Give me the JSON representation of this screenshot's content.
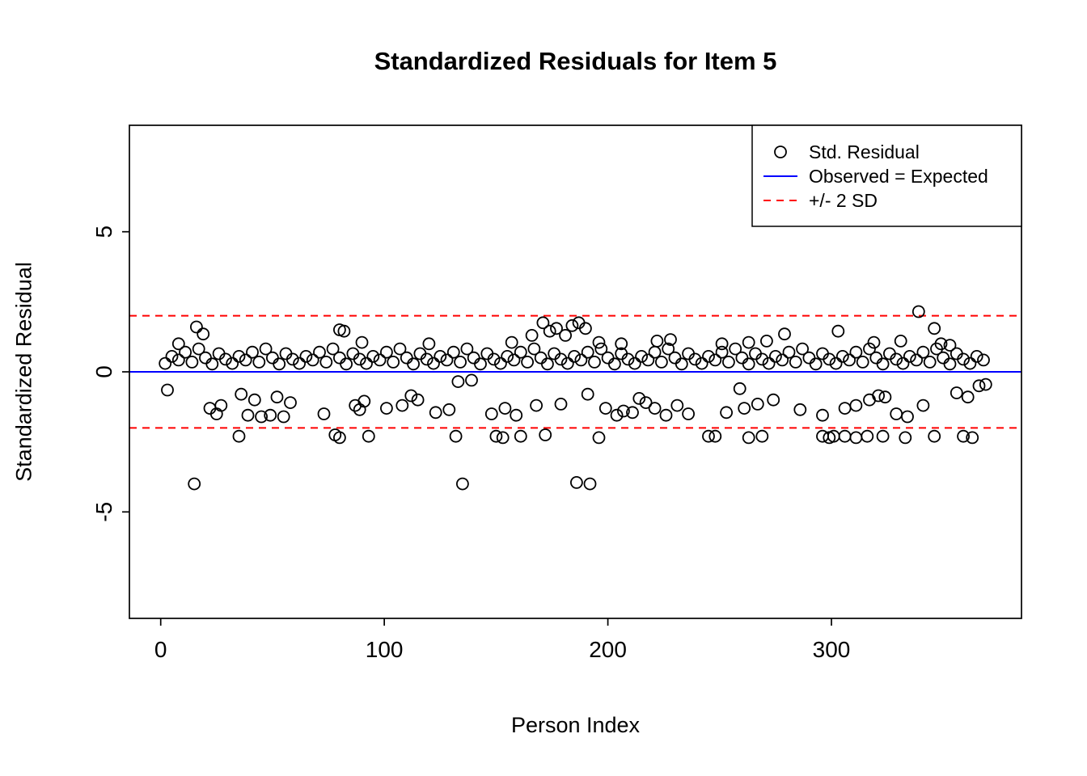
{
  "page": {
    "background": "#ffffff"
  },
  "chart_data": {
    "type": "scatter",
    "title": "Standardized Residuals for Item 5",
    "xlabel": "Person Index",
    "ylabel": "Standardized Residual",
    "x_ticks": [
      0,
      100,
      200,
      300
    ],
    "y_ticks": [
      -5,
      0,
      5
    ],
    "x_range": [
      -14,
      385
    ],
    "y_range": [
      -8.8,
      8.8
    ],
    "point_color": "#000000",
    "reference_lines": [
      {
        "label": "Observed = Expected",
        "y": 0,
        "color": "#0000ff",
        "style": "solid"
      },
      {
        "label": "+2 SD",
        "y": 2,
        "color": "#ff0000",
        "style": "dashed"
      },
      {
        "label": "-2 SD",
        "y": -2,
        "color": "#ff0000",
        "style": "dashed"
      }
    ],
    "legend": {
      "entries": [
        {
          "label": "Std. Residual",
          "type": "point",
          "color": "#000000"
        },
        {
          "label": "Observed = Expected",
          "type": "line",
          "color": "#0000ff"
        },
        {
          "label": "+/- 2 SD",
          "type": "dashed",
          "color": "#ff0000"
        }
      ]
    },
    "points": [
      [
        2,
        0.3
      ],
      [
        5,
        0.55
      ],
      [
        8,
        0.42
      ],
      [
        11,
        0.7
      ],
      [
        14,
        0.35
      ],
      [
        17,
        0.82
      ],
      [
        20,
        0.5
      ],
      [
        23,
        0.28
      ],
      [
        26,
        0.65
      ],
      [
        29,
        0.45
      ],
      [
        32,
        0.3
      ],
      [
        35,
        0.55
      ],
      [
        38,
        0.42
      ],
      [
        41,
        0.7
      ],
      [
        44,
        0.35
      ],
      [
        47,
        0.82
      ],
      [
        50,
        0.5
      ],
      [
        53,
        0.28
      ],
      [
        56,
        0.65
      ],
      [
        59,
        0.45
      ],
      [
        62,
        0.3
      ],
      [
        65,
        0.55
      ],
      [
        68,
        0.42
      ],
      [
        71,
        0.7
      ],
      [
        74,
        0.35
      ],
      [
        77,
        0.82
      ],
      [
        80,
        0.5
      ],
      [
        83,
        0.28
      ],
      [
        86,
        0.65
      ],
      [
        89,
        0.45
      ],
      [
        92,
        0.3
      ],
      [
        95,
        0.55
      ],
      [
        98,
        0.42
      ],
      [
        101,
        0.7
      ],
      [
        104,
        0.35
      ],
      [
        107,
        0.82
      ],
      [
        110,
        0.5
      ],
      [
        113,
        0.28
      ],
      [
        116,
        0.65
      ],
      [
        119,
        0.45
      ],
      [
        122,
        0.3
      ],
      [
        125,
        0.55
      ],
      [
        128,
        0.42
      ],
      [
        131,
        0.7
      ],
      [
        134,
        0.35
      ],
      [
        137,
        0.82
      ],
      [
        140,
        0.5
      ],
      [
        143,
        0.28
      ],
      [
        146,
        0.65
      ],
      [
        149,
        0.45
      ],
      [
        152,
        0.3
      ],
      [
        155,
        0.55
      ],
      [
        158,
        0.42
      ],
      [
        161,
        0.7
      ],
      [
        164,
        0.35
      ],
      [
        167,
        0.82
      ],
      [
        170,
        0.5
      ],
      [
        173,
        0.28
      ],
      [
        176,
        0.65
      ],
      [
        179,
        0.45
      ],
      [
        182,
        0.3
      ],
      [
        185,
        0.55
      ],
      [
        188,
        0.42
      ],
      [
        191,
        0.7
      ],
      [
        194,
        0.35
      ],
      [
        197,
        0.82
      ],
      [
        200,
        0.5
      ],
      [
        203,
        0.28
      ],
      [
        206,
        0.65
      ],
      [
        209,
        0.45
      ],
      [
        212,
        0.3
      ],
      [
        215,
        0.55
      ],
      [
        218,
        0.42
      ],
      [
        221,
        0.7
      ],
      [
        224,
        0.35
      ],
      [
        227,
        0.82
      ],
      [
        230,
        0.5
      ],
      [
        233,
        0.28
      ],
      [
        236,
        0.65
      ],
      [
        239,
        0.45
      ],
      [
        242,
        0.3
      ],
      [
        245,
        0.55
      ],
      [
        248,
        0.42
      ],
      [
        251,
        0.7
      ],
      [
        254,
        0.35
      ],
      [
        257,
        0.82
      ],
      [
        260,
        0.5
      ],
      [
        263,
        0.28
      ],
      [
        266,
        0.65
      ],
      [
        269,
        0.45
      ],
      [
        272,
        0.3
      ],
      [
        275,
        0.55
      ],
      [
        278,
        0.42
      ],
      [
        281,
        0.7
      ],
      [
        284,
        0.35
      ],
      [
        287,
        0.82
      ],
      [
        290,
        0.5
      ],
      [
        293,
        0.28
      ],
      [
        296,
        0.65
      ],
      [
        299,
        0.45
      ],
      [
        302,
        0.3
      ],
      [
        305,
        0.55
      ],
      [
        308,
        0.42
      ],
      [
        311,
        0.7
      ],
      [
        314,
        0.35
      ],
      [
        317,
        0.82
      ],
      [
        320,
        0.5
      ],
      [
        323,
        0.28
      ],
      [
        326,
        0.65
      ],
      [
        329,
        0.45
      ],
      [
        332,
        0.3
      ],
      [
        335,
        0.55
      ],
      [
        338,
        0.42
      ],
      [
        341,
        0.7
      ],
      [
        344,
        0.35
      ],
      [
        347,
        0.82
      ],
      [
        350,
        0.5
      ],
      [
        353,
        0.28
      ],
      [
        356,
        0.65
      ],
      [
        359,
        0.45
      ],
      [
        362,
        0.3
      ],
      [
        365,
        0.55
      ],
      [
        368,
        0.42
      ],
      [
        8,
        1.0
      ],
      [
        16,
        1.6
      ],
      [
        19,
        1.35
      ],
      [
        80,
        1.5
      ],
      [
        82,
        1.45
      ],
      [
        90,
        1.05
      ],
      [
        120,
        1.0
      ],
      [
        157,
        1.05
      ],
      [
        166,
        1.3
      ],
      [
        171,
        1.75
      ],
      [
        174,
        1.45
      ],
      [
        177,
        1.55
      ],
      [
        181,
        1.3
      ],
      [
        184,
        1.65
      ],
      [
        187,
        1.75
      ],
      [
        190,
        1.55
      ],
      [
        196,
        1.05
      ],
      [
        206,
        1.0
      ],
      [
        222,
        1.1
      ],
      [
        228,
        1.15
      ],
      [
        251,
        1.0
      ],
      [
        263,
        1.05
      ],
      [
        271,
        1.1
      ],
      [
        279,
        1.35
      ],
      [
        303,
        1.45
      ],
      [
        319,
        1.05
      ],
      [
        331,
        1.1
      ],
      [
        339,
        2.15
      ],
      [
        346,
        1.55
      ],
      [
        349,
        1.0
      ],
      [
        353,
        0.95
      ],
      [
        3,
        -0.65
      ],
      [
        22,
        -1.3
      ],
      [
        25,
        -1.5
      ],
      [
        27,
        -1.2
      ],
      [
        36,
        -0.8
      ],
      [
        39,
        -1.55
      ],
      [
        42,
        -1.0
      ],
      [
        45,
        -1.6
      ],
      [
        49,
        -1.55
      ],
      [
        52,
        -0.9
      ],
      [
        55,
        -1.6
      ],
      [
        58,
        -1.1
      ],
      [
        73,
        -1.5
      ],
      [
        87,
        -1.2
      ],
      [
        89,
        -1.35
      ],
      [
        91,
        -1.05
      ],
      [
        101,
        -1.3
      ],
      [
        108,
        -1.2
      ],
      [
        112,
        -0.85
      ],
      [
        115,
        -1.0
      ],
      [
        123,
        -1.45
      ],
      [
        129,
        -1.35
      ],
      [
        133,
        -0.35
      ],
      [
        139,
        -0.3
      ],
      [
        148,
        -1.5
      ],
      [
        154,
        -1.3
      ],
      [
        159,
        -1.55
      ],
      [
        168,
        -1.2
      ],
      [
        179,
        -1.15
      ],
      [
        191,
        -0.8
      ],
      [
        199,
        -1.3
      ],
      [
        204,
        -1.55
      ],
      [
        207,
        -1.4
      ],
      [
        211,
        -1.45
      ],
      [
        214,
        -0.95
      ],
      [
        217,
        -1.1
      ],
      [
        221,
        -1.3
      ],
      [
        226,
        -1.55
      ],
      [
        231,
        -1.2
      ],
      [
        236,
        -1.5
      ],
      [
        253,
        -1.45
      ],
      [
        259,
        -0.6
      ],
      [
        261,
        -1.3
      ],
      [
        267,
        -1.15
      ],
      [
        274,
        -1.0
      ],
      [
        286,
        -1.35
      ],
      [
        296,
        -1.55
      ],
      [
        306,
        -1.3
      ],
      [
        311,
        -1.2
      ],
      [
        317,
        -1.0
      ],
      [
        321,
        -0.85
      ],
      [
        324,
        -0.9
      ],
      [
        329,
        -1.5
      ],
      [
        334,
        -1.6
      ],
      [
        341,
        -1.2
      ],
      [
        356,
        -0.75
      ],
      [
        361,
        -0.9
      ],
      [
        366,
        -0.5
      ],
      [
        369,
        -0.45
      ],
      [
        35,
        -2.3
      ],
      [
        78,
        -2.25
      ],
      [
        80,
        -2.35
      ],
      [
        93,
        -2.3
      ],
      [
        132,
        -2.3
      ],
      [
        150,
        -2.3
      ],
      [
        153,
        -2.35
      ],
      [
        161,
        -2.3
      ],
      [
        172,
        -2.25
      ],
      [
        196,
        -2.35
      ],
      [
        245,
        -2.3
      ],
      [
        248,
        -2.3
      ],
      [
        263,
        -2.35
      ],
      [
        269,
        -2.3
      ],
      [
        296,
        -2.3
      ],
      [
        299,
        -2.35
      ],
      [
        301,
        -2.3
      ],
      [
        306,
        -2.3
      ],
      [
        311,
        -2.35
      ],
      [
        316,
        -2.3
      ],
      [
        323,
        -2.3
      ],
      [
        333,
        -2.35
      ],
      [
        346,
        -2.3
      ],
      [
        359,
        -2.3
      ],
      [
        363,
        -2.35
      ],
      [
        15,
        -4.0
      ],
      [
        135,
        -4.0
      ],
      [
        186,
        -3.95
      ],
      [
        192,
        -4.0
      ]
    ]
  }
}
